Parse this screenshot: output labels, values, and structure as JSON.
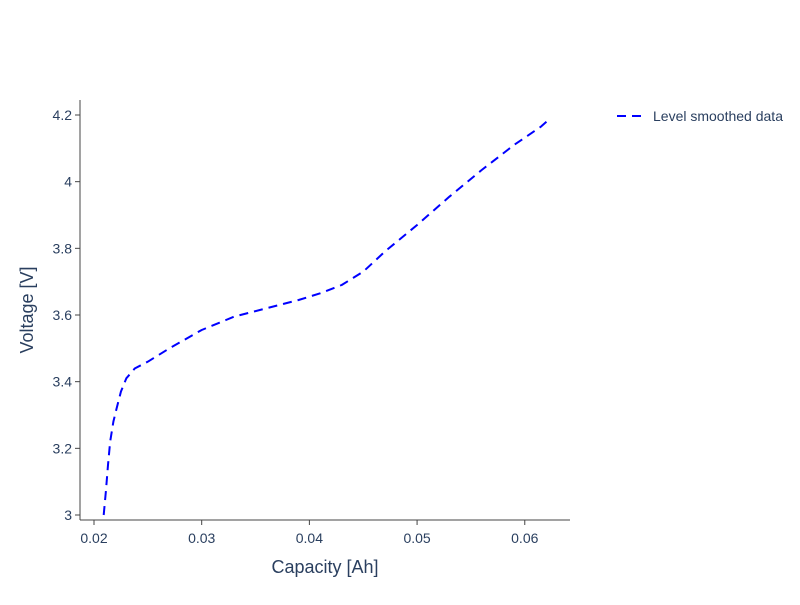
{
  "chart_data": {
    "type": "line",
    "title": "",
    "xlabel": "Capacity [Ah]",
    "ylabel": "Voltage [V]",
    "xlim": [
      0.0187,
      0.0642
    ],
    "ylim": [
      2.985,
      4.245
    ],
    "x_ticks": [
      {
        "value": 0.02,
        "label": "0.02"
      },
      {
        "value": 0.03,
        "label": "0.03"
      },
      {
        "value": 0.04,
        "label": "0.04"
      },
      {
        "value": 0.05,
        "label": "0.05"
      },
      {
        "value": 0.06,
        "label": "0.06"
      }
    ],
    "y_ticks": [
      {
        "value": 3.0,
        "label": "3"
      },
      {
        "value": 3.2,
        "label": "3.2"
      },
      {
        "value": 3.4,
        "label": "3.4"
      },
      {
        "value": 3.6,
        "label": "3.6"
      },
      {
        "value": 3.8,
        "label": "3.8"
      },
      {
        "value": 4.0,
        "label": "4"
      },
      {
        "value": 4.2,
        "label": "4.2"
      }
    ],
    "grid": false,
    "legend_position": "top-right, outside plot",
    "series": [
      {
        "name": "Level smoothed data",
        "color": "#0000ff",
        "dash": "dashed",
        "x": [
          0.0209,
          0.0211,
          0.0213,
          0.0215,
          0.0218,
          0.0221,
          0.0225,
          0.023,
          0.0238,
          0.025,
          0.027,
          0.03,
          0.033,
          0.036,
          0.039,
          0.041,
          0.043,
          0.045,
          0.047,
          0.05,
          0.053,
          0.056,
          0.059,
          0.0615,
          0.0622
        ],
        "y": [
          3.0,
          3.07,
          3.15,
          3.22,
          3.28,
          3.32,
          3.37,
          3.41,
          3.44,
          3.46,
          3.5,
          3.555,
          3.595,
          3.62,
          3.645,
          3.665,
          3.69,
          3.73,
          3.79,
          3.87,
          3.955,
          4.035,
          4.11,
          4.165,
          4.185
        ]
      }
    ]
  }
}
